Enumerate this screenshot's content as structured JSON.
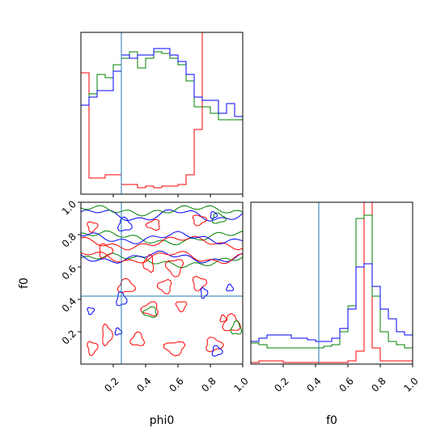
{
  "chart_data": {
    "type": "corner",
    "parameters": [
      "phi0",
      "f0"
    ],
    "truths": {
      "phi0": 0.25,
      "f0": 0.42
    },
    "truth_color": "#1f77b4",
    "series_colors": [
      "#ff0000",
      "#008000",
      "#0000ff"
    ],
    "panels": [
      {
        "id": "hist_phi0",
        "type": "step-histogram",
        "param": "phi0",
        "xlim": [
          0,
          1
        ],
        "bin_edges": [
          0.0,
          0.05,
          0.1,
          0.15,
          0.2,
          0.25,
          0.3,
          0.35,
          0.4,
          0.45,
          0.5,
          0.55,
          0.6,
          0.65,
          0.7,
          0.75,
          0.8,
          0.85,
          0.9,
          0.95,
          1.0
        ],
        "series": [
          {
            "color": "red",
            "values": [
              0.75,
              0.1,
              0.1,
              0.12,
              0.12,
              0.06,
              0.06,
              0.04,
              0.05,
              0.04,
              0.05,
              0.05,
              0.06,
              0.12,
              0.4,
              1.05,
              1.05,
              1.05,
              1.05,
              1.05
            ]
          },
          {
            "color": "green",
            "values": [
              0.55,
              0.62,
              0.74,
              0.72,
              0.8,
              0.84,
              0.88,
              0.78,
              0.84,
              0.88,
              0.87,
              0.84,
              0.8,
              0.7,
              0.54,
              0.54,
              0.5,
              0.46,
              0.46,
              0.46
            ]
          },
          {
            "color": "blue",
            "values": [
              0.55,
              0.6,
              0.64,
              0.64,
              0.76,
              0.86,
              0.84,
              0.86,
              0.86,
              0.9,
              0.9,
              0.86,
              0.82,
              0.74,
              0.6,
              0.58,
              0.58,
              0.5,
              0.56,
              0.48
            ]
          }
        ]
      },
      {
        "id": "contour_f0_phi0",
        "type": "contour",
        "xparam": "phi0",
        "yparam": "f0",
        "xlim": [
          0,
          1
        ],
        "ylim": [
          0,
          1
        ],
        "xticks": [
          0.2,
          0.4,
          0.6,
          0.8,
          1.0
        ],
        "yticks": [
          0.2,
          0.4,
          0.6,
          0.8,
          1.0
        ]
      },
      {
        "id": "hist_f0",
        "type": "step-histogram",
        "param": "f0",
        "xlim": [
          0,
          1
        ],
        "bin_edges": [
          0.0,
          0.05,
          0.1,
          0.15,
          0.2,
          0.25,
          0.3,
          0.35,
          0.4,
          0.45,
          0.5,
          0.55,
          0.6,
          0.65,
          0.7,
          0.75,
          0.8,
          0.85,
          0.9,
          0.95,
          1.0
        ],
        "series": [
          {
            "color": "red",
            "values": [
              0.01,
              0.02,
              0.02,
              0.02,
              0.01,
              0.01,
              0.01,
              0.01,
              0.01,
              0.01,
              0.01,
              0.01,
              0.02,
              0.08,
              1.05,
              0.1,
              0.02,
              0.02,
              0.02,
              0.02
            ]
          },
          {
            "color": "green",
            "values": [
              0.13,
              0.12,
              0.1,
              0.1,
              0.1,
              0.1,
              0.1,
              0.1,
              0.1,
              0.11,
              0.12,
              0.2,
              0.36,
              0.9,
              0.92,
              0.42,
              0.2,
              0.14,
              0.12,
              0.1
            ]
          },
          {
            "color": "blue",
            "values": [
              0.14,
              0.16,
              0.18,
              0.18,
              0.18,
              0.16,
              0.16,
              0.15,
              0.14,
              0.14,
              0.16,
              0.22,
              0.34,
              0.6,
              0.62,
              0.48,
              0.34,
              0.28,
              0.2,
              0.18
            ]
          }
        ],
        "xticks": [
          0.2,
          0.4,
          0.6,
          0.8,
          1.0
        ]
      }
    ],
    "xlabels": {
      "phi0": "phi0",
      "f0": "f0"
    },
    "ylabels": {
      "f0": "f0"
    },
    "tick_labels": [
      "0.2",
      "0.4",
      "0.6",
      "0.8",
      "1.0"
    ]
  }
}
